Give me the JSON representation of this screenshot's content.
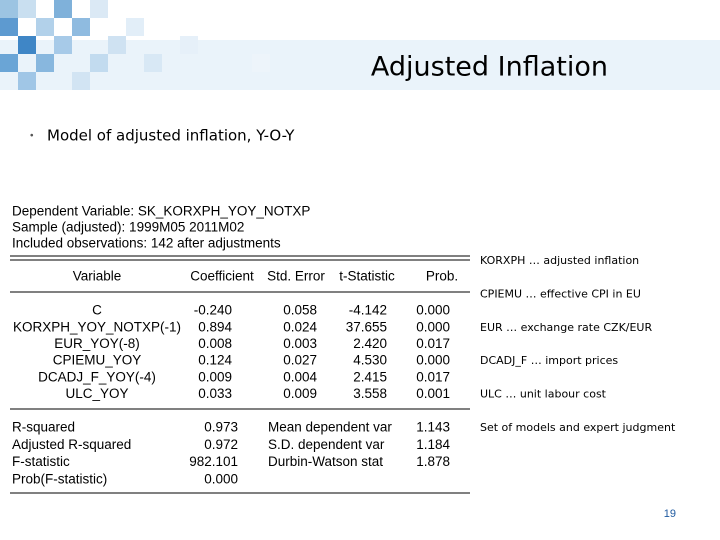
{
  "title": "Adjusted Inflation",
  "bullet": "Model of adjusted inflation, Y-O-Y",
  "regression": {
    "header_lines": [
      "Dependent Variable: SK_KORXPH_YOY_NOTXP",
      "Sample (adjusted): 1999M05 2011M02",
      "Included observations: 142 after adjustments"
    ],
    "columns": [
      "Variable",
      "Coefficient",
      "Std. Error",
      "t-Statistic",
      "Prob."
    ],
    "rows": [
      [
        "C",
        "-0.240",
        "0.058",
        "-4.142",
        "0.000"
      ],
      [
        "KORXPH_YOY_NOTXP(-1)",
        "0.894",
        "0.024",
        "37.655",
        "0.000"
      ],
      [
        "EUR_YOY(-8)",
        "0.008",
        "0.003",
        "2.420",
        "0.017"
      ],
      [
        "CPIEMU_YOY",
        "0.124",
        "0.027",
        "4.530",
        "0.000"
      ],
      [
        "DCADJ_F_YOY(-4)",
        "0.009",
        "0.004",
        "2.415",
        "0.017"
      ],
      [
        "ULC_YOY",
        "0.033",
        "0.009",
        "3.558",
        "0.001"
      ]
    ],
    "stats": [
      [
        "R-squared",
        "0.973",
        "Mean dependent var",
        "1.143"
      ],
      [
        "Adjusted R-squared",
        "0.972",
        "S.D. dependent var",
        "1.184"
      ],
      [
        "F-statistic",
        "982.101",
        "Durbin-Watson stat",
        "1.878"
      ],
      [
        "Prob(F-statistic)",
        "0.000"
      ]
    ]
  },
  "notes": [
    "KORXPH … adjusted inflation",
    "CPIEMU … effective CPI in EU",
    "EUR … exchange rate CZK/EUR",
    "DCADJ_F … import prices",
    "ULC … unit labour cost",
    "Set of models and expert judgment"
  ],
  "page_number": 19
}
